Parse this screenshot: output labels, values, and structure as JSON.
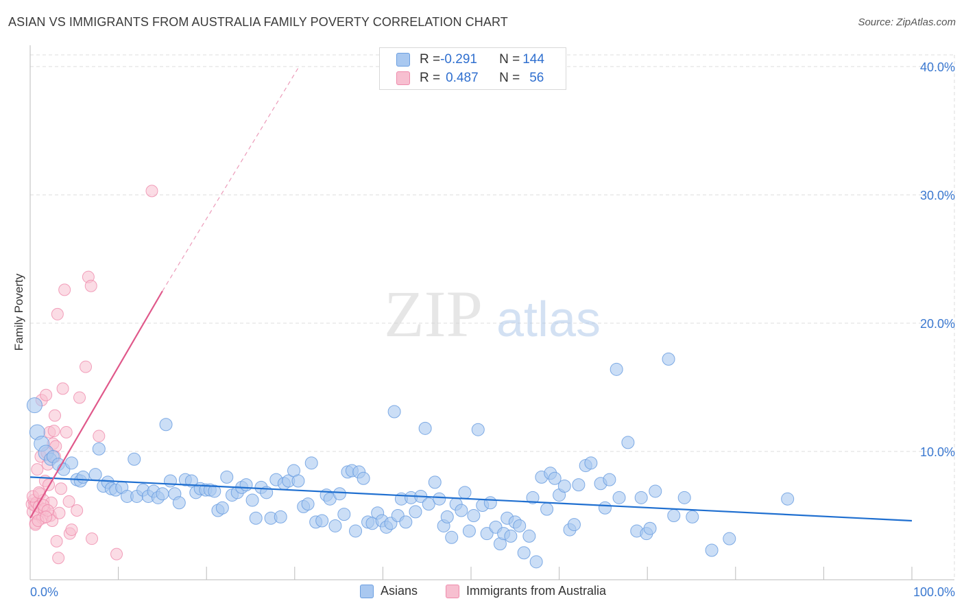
{
  "title": "ASIAN VS IMMIGRANTS FROM AUSTRALIA FAMILY POVERTY CORRELATION CHART",
  "source": "Source: ZipAtlas.com",
  "watermark": {
    "zip": "ZIP",
    "atlas": "atlas"
  },
  "legend": {
    "asian": {
      "r_label": "R = ",
      "r_value": "-0.291",
      "n_label": "N = ",
      "n_value": "144"
    },
    "australia": {
      "r_label": "R = ",
      "r_value": "0.487",
      "n_label": "N = ",
      "n_value": "56"
    }
  },
  "bottom_legend": {
    "asian": "Asians",
    "australia": "Immigrants from Australia"
  },
  "colors": {
    "asian_fill": "#a9c8f0",
    "asian_stroke": "#6a9ee0",
    "asian_line": "#1f6fd0",
    "aus_fill": "#f7bfd0",
    "aus_stroke": "#ef8aab",
    "aus_line": "#e0588a",
    "tick_text": "#3a78d0",
    "grid": "#dddddd"
  },
  "chart_data": {
    "type": "scatter",
    "title": "ASIAN VS IMMIGRANTS FROM AUSTRALIA FAMILY POVERTY CORRELATION CHART",
    "xlabel": "",
    "ylabel": "Family Poverty",
    "xlim": [
      0,
      100
    ],
    "ylim": [
      0,
      40
    ],
    "x_tick_labels": [
      "0.0%",
      "100.0%"
    ],
    "y_ticks": [
      10,
      20,
      30,
      40
    ],
    "y_tick_labels": [
      "10.0%",
      "20.0%",
      "30.0%",
      "40.0%"
    ],
    "grid": true,
    "legend_position": "top-center",
    "series": [
      {
        "name": "Asians",
        "r": -0.291,
        "n": 144,
        "trend": {
          "x": [
            0,
            100
          ],
          "y": [
            8.0,
            4.6
          ]
        },
        "points": [
          [
            0.5,
            13.6
          ],
          [
            0.8,
            11.5
          ],
          [
            1.3,
            10.6
          ],
          [
            1.8,
            9.9
          ],
          [
            2.3,
            9.4
          ],
          [
            2.6,
            9.6
          ],
          [
            3.2,
            9.0
          ],
          [
            3.8,
            8.6
          ],
          [
            4.7,
            9.1
          ],
          [
            5.3,
            7.8
          ],
          [
            5.7,
            7.7
          ],
          [
            6.0,
            8.0
          ],
          [
            7.4,
            8.2
          ],
          [
            7.8,
            10.2
          ],
          [
            8.3,
            7.3
          ],
          [
            8.8,
            7.6
          ],
          [
            9.2,
            7.1
          ],
          [
            9.7,
            7.0
          ],
          [
            10.4,
            7.2
          ],
          [
            11.0,
            6.5
          ],
          [
            11.8,
            9.4
          ],
          [
            12.1,
            6.5
          ],
          [
            12.8,
            7.0
          ],
          [
            13.4,
            6.5
          ],
          [
            14.0,
            6.9
          ],
          [
            14.5,
            6.4
          ],
          [
            15.0,
            6.7
          ],
          [
            15.4,
            12.1
          ],
          [
            15.9,
            7.7
          ],
          [
            16.4,
            6.7
          ],
          [
            16.9,
            6.0
          ],
          [
            17.6,
            7.8
          ],
          [
            18.3,
            7.7
          ],
          [
            18.8,
            6.8
          ],
          [
            19.3,
            7.1
          ],
          [
            19.9,
            7.0
          ],
          [
            20.4,
            7.0
          ],
          [
            20.9,
            6.9
          ],
          [
            21.3,
            5.4
          ],
          [
            21.8,
            5.6
          ],
          [
            22.3,
            8.0
          ],
          [
            22.9,
            6.6
          ],
          [
            23.5,
            6.8
          ],
          [
            24.0,
            7.2
          ],
          [
            24.5,
            7.4
          ],
          [
            25.2,
            6.2
          ],
          [
            25.6,
            4.8
          ],
          [
            26.2,
            7.2
          ],
          [
            26.8,
            6.8
          ],
          [
            27.3,
            4.8
          ],
          [
            27.9,
            7.8
          ],
          [
            28.4,
            4.9
          ],
          [
            28.8,
            7.5
          ],
          [
            29.3,
            7.7
          ],
          [
            29.9,
            8.5
          ],
          [
            30.4,
            7.7
          ],
          [
            31.0,
            5.7
          ],
          [
            31.5,
            5.9
          ],
          [
            31.9,
            9.1
          ],
          [
            32.4,
            4.5
          ],
          [
            33.1,
            4.6
          ],
          [
            33.6,
            6.6
          ],
          [
            34.0,
            6.3
          ],
          [
            34.6,
            4.2
          ],
          [
            35.1,
            6.7
          ],
          [
            35.6,
            5.1
          ],
          [
            36.0,
            8.4
          ],
          [
            36.5,
            8.5
          ],
          [
            36.9,
            3.8
          ],
          [
            37.3,
            8.4
          ],
          [
            37.8,
            7.9
          ],
          [
            38.3,
            4.5
          ],
          [
            38.8,
            4.4
          ],
          [
            39.4,
            5.2
          ],
          [
            39.9,
            4.6
          ],
          [
            40.4,
            4.1
          ],
          [
            40.9,
            4.4
          ],
          [
            41.3,
            13.1
          ],
          [
            41.7,
            5.0
          ],
          [
            42.1,
            6.3
          ],
          [
            42.6,
            4.5
          ],
          [
            43.2,
            6.4
          ],
          [
            43.7,
            5.3
          ],
          [
            44.3,
            6.5
          ],
          [
            44.8,
            11.8
          ],
          [
            45.2,
            5.9
          ],
          [
            45.9,
            7.6
          ],
          [
            46.4,
            6.3
          ],
          [
            46.9,
            4.2
          ],
          [
            47.3,
            4.9
          ],
          [
            47.8,
            3.3
          ],
          [
            48.3,
            5.9
          ],
          [
            48.9,
            5.4
          ],
          [
            49.3,
            6.8
          ],
          [
            49.8,
            3.8
          ],
          [
            50.3,
            5.0
          ],
          [
            50.8,
            11.7
          ],
          [
            51.3,
            5.8
          ],
          [
            51.8,
            3.6
          ],
          [
            52.2,
            6.0
          ],
          [
            52.8,
            4.1
          ],
          [
            53.3,
            2.8
          ],
          [
            53.7,
            3.6
          ],
          [
            54.1,
            4.8
          ],
          [
            54.5,
            3.4
          ],
          [
            55.0,
            4.5
          ],
          [
            55.5,
            4.2
          ],
          [
            56.0,
            2.1
          ],
          [
            56.6,
            3.4
          ],
          [
            57.0,
            6.4
          ],
          [
            57.4,
            1.4
          ],
          [
            58.0,
            8.0
          ],
          [
            58.6,
            5.5
          ],
          [
            59.0,
            8.3
          ],
          [
            59.5,
            7.9
          ],
          [
            60.0,
            6.6
          ],
          [
            60.6,
            7.3
          ],
          [
            61.2,
            3.9
          ],
          [
            61.7,
            4.3
          ],
          [
            62.2,
            7.4
          ],
          [
            63.0,
            8.9
          ],
          [
            63.6,
            9.1
          ],
          [
            64.7,
            7.5
          ],
          [
            65.2,
            5.6
          ],
          [
            65.7,
            7.8
          ],
          [
            66.5,
            16.4
          ],
          [
            66.8,
            6.4
          ],
          [
            67.8,
            10.7
          ],
          [
            68.8,
            3.8
          ],
          [
            69.3,
            6.4
          ],
          [
            69.9,
            3.6
          ],
          [
            70.3,
            4.0
          ],
          [
            70.9,
            6.9
          ],
          [
            72.4,
            17.2
          ],
          [
            73.0,
            5.0
          ],
          [
            74.2,
            6.4
          ],
          [
            75.1,
            4.9
          ],
          [
            77.3,
            2.3
          ],
          [
            79.3,
            3.2
          ],
          [
            85.9,
            6.3
          ]
        ]
      },
      {
        "name": "Immigrants from Australia",
        "r": 0.487,
        "n": 56,
        "trend": {
          "x": [
            0,
            15
          ],
          "y": [
            4.8,
            22.5
          ],
          "dashed_to": {
            "x": 30.5,
            "y": 40.0
          }
        },
        "points": [
          [
            0.2,
            5.9
          ],
          [
            0.3,
            5.3
          ],
          [
            0.4,
            6.2
          ],
          [
            0.5,
            5.8
          ],
          [
            0.6,
            4.4
          ],
          [
            0.7,
            6.0
          ],
          [
            0.8,
            8.6
          ],
          [
            0.9,
            5.1
          ],
          [
            1.0,
            5.7
          ],
          [
            1.1,
            6.7
          ],
          [
            1.2,
            9.6
          ],
          [
            1.3,
            14.0
          ],
          [
            1.4,
            4.8
          ],
          [
            1.5,
            6.2
          ],
          [
            1.6,
            5.5
          ],
          [
            1.7,
            7.7
          ],
          [
            1.8,
            14.4
          ],
          [
            1.9,
            9.9
          ],
          [
            2.0,
            9.0
          ],
          [
            2.1,
            7.4
          ],
          [
            2.2,
            11.5
          ],
          [
            2.3,
            5.0
          ],
          [
            2.4,
            6.0
          ],
          [
            2.5,
            4.6
          ],
          [
            2.6,
            10.6
          ],
          [
            2.7,
            11.6
          ],
          [
            2.8,
            12.8
          ],
          [
            2.9,
            10.4
          ],
          [
            3.0,
            3.0
          ],
          [
            3.1,
            20.7
          ],
          [
            3.2,
            1.7
          ],
          [
            3.3,
            5.2
          ],
          [
            3.5,
            7.1
          ],
          [
            3.7,
            14.9
          ],
          [
            3.9,
            22.6
          ],
          [
            4.1,
            11.5
          ],
          [
            4.4,
            6.1
          ],
          [
            4.5,
            3.6
          ],
          [
            4.7,
            3.9
          ],
          [
            5.3,
            5.4
          ],
          [
            5.6,
            14.2
          ],
          [
            6.3,
            16.6
          ],
          [
            6.6,
            23.6
          ],
          [
            6.9,
            22.9
          ],
          [
            7.0,
            3.2
          ],
          [
            7.8,
            11.2
          ],
          [
            9.8,
            2.0
          ],
          [
            13.8,
            30.3
          ],
          [
            0.3,
            6.5
          ],
          [
            0.6,
            4.3
          ],
          [
            1.0,
            6.8
          ],
          [
            1.5,
            5.8
          ],
          [
            2.0,
            5.4
          ],
          [
            2.8,
            9.6
          ],
          [
            0.9,
            4.6
          ],
          [
            1.8,
            4.9
          ]
        ]
      }
    ]
  }
}
